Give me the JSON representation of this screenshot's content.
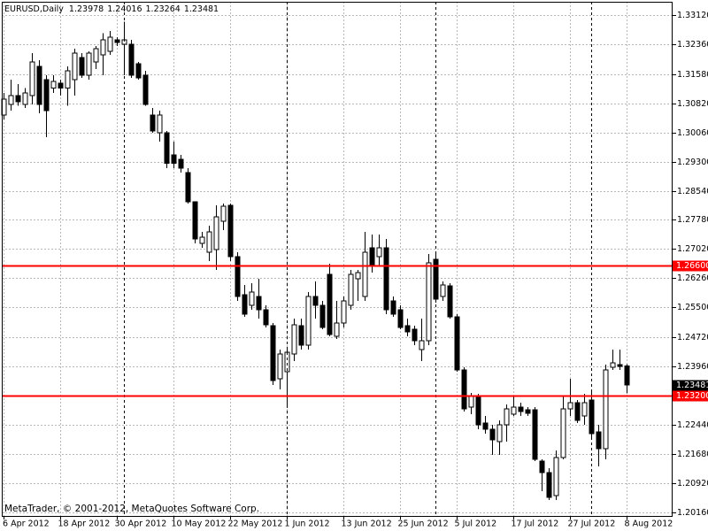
{
  "chart_data": {
    "type": "candlestick",
    "symbol": "EURUSD,Daily",
    "footer": "MetaTrader, © 2001-2012, MetaQuotes Software Corp.",
    "categories": [
      "6 Apr 2012",
      null,
      null,
      null,
      null,
      null,
      null,
      null,
      "18 Apr 2012",
      null,
      null,
      null,
      null,
      null,
      null,
      null,
      "30 Apr 2012",
      null,
      null,
      null,
      null,
      null,
      null,
      null,
      "10 May 2012",
      null,
      null,
      null,
      null,
      null,
      null,
      null,
      "22 May 2012",
      null,
      null,
      null,
      null,
      null,
      null,
      null,
      "1 Jun 2012",
      null,
      null,
      null,
      null,
      null,
      null,
      null,
      "13 Jun 2012",
      null,
      null,
      null,
      null,
      null,
      null,
      null,
      "25 Jun 2012",
      null,
      null,
      null,
      null,
      null,
      null,
      null,
      "5 Jul 2012",
      null,
      null,
      null,
      null,
      null,
      null,
      null,
      "17 Jul 2012",
      null,
      null,
      null,
      null,
      null,
      null,
      null,
      "27 Jul 2012",
      null,
      null,
      null,
      null,
      null,
      null,
      null,
      "8 Aug 2012"
    ],
    "open": [
      1.3051,
      1.3079,
      1.3102,
      1.3079,
      1.3102,
      1.3178,
      1.3144,
      1.3121,
      1.3134,
      1.3121,
      1.3144,
      1.3201,
      1.3155,
      1.319,
      1.3208,
      1.3217,
      1.3247,
      1.3236,
      1.3236,
      1.3185,
      1.3155,
      1.3051,
      1.3005,
      1.3005,
      1.2948,
      1.2936,
      1.2901,
      1.2825,
      1.2717,
      1.2694,
      1.2701,
      1.2775,
      1.2816,
      1.2682,
      1.2583,
      1.2555,
      1.2579,
      1.2544,
      1.2502,
      1.2364,
      1.2383,
      1.2429,
      1.2502,
      1.2452,
      1.2579,
      1.2555,
      1.2636,
      1.2475,
      1.2509,
      1.2555,
      1.2625,
      1.2579,
      1.2705,
      1.2682,
      1.2705,
      1.2567,
      1.2544,
      1.2502,
      1.2493,
      1.244,
      1.2463,
      1.2675,
      1.2579,
      1.2606,
      1.2526,
      1.2387,
      1.229,
      1.2318,
      1.2249,
      1.2233,
      1.22,
      1.2244,
      1.2272,
      1.229,
      1.2283,
      1.2283,
      1.215,
      1.212,
      1.206,
      1.2159,
      1.2286,
      1.2302,
      1.2267,
      1.2309,
      1.2226,
      1.2182,
      1.2394,
      1.2401,
      1.23978
    ],
    "high": [
      1.3109,
      1.3144,
      1.3132,
      1.3121,
      1.3213,
      1.3194,
      1.3155,
      1.3155,
      1.3144,
      1.3178,
      1.3224,
      1.3213,
      1.3217,
      1.3231,
      1.3264,
      1.327,
      1.3254,
      1.3294,
      1.3247,
      1.319,
      1.3167,
      1.307,
      1.3063,
      1.301,
      1.2982,
      1.2948,
      1.2913,
      1.2825,
      1.2747,
      1.2763,
      1.2816,
      1.2821,
      1.2821,
      1.2694,
      1.2609,
      1.2613,
      1.2625,
      1.2555,
      1.2509,
      1.244,
      1.244,
      1.2521,
      1.2521,
      1.259,
      1.2618,
      1.2567,
      1.2664,
      1.2567,
      1.2579,
      1.2648,
      1.2648,
      1.2747,
      1.274,
      1.274,
      1.2728,
      1.2579,
      1.2555,
      1.2521,
      1.2502,
      1.2521,
      1.2689,
      1.2694,
      1.2618,
      1.2613,
      1.2532,
      1.2394,
      1.2327,
      1.2325,
      1.2267,
      1.2244,
      1.2256,
      1.2297,
      1.2318,
      1.2302,
      1.229,
      1.229,
      1.2154,
      1.2131,
      1.2177,
      1.232,
      1.2364,
      1.2309,
      1.2325,
      1.2336,
      1.2244,
      1.2401,
      1.244,
      1.244,
      1.24016
    ],
    "low": [
      1.304,
      1.3063,
      1.3075,
      1.307,
      1.3079,
      1.3056,
      1.2994,
      1.3109,
      1.3102,
      1.3075,
      1.3102,
      1.3148,
      1.3144,
      1.3171,
      1.3155,
      1.3208,
      1.3231,
      1.3155,
      1.3148,
      1.3144,
      1.3075,
      1.3005,
      1.2982,
      1.2913,
      1.2913,
      1.2901,
      1.2821,
      1.2717,
      1.2705,
      1.2671,
      1.2648,
      1.2751,
      1.2671,
      1.2567,
      1.2526,
      1.2544,
      1.2521,
      1.2498,
      1.2348,
      1.2336,
      1.229,
      1.241,
      1.244,
      1.244,
      1.2521,
      1.2493,
      1.2475,
      1.2468,
      1.2498,
      1.2544,
      1.2567,
      1.2567,
      1.2641,
      1.2659,
      1.2532,
      1.2526,
      1.2493,
      1.2475,
      1.2452,
      1.241,
      1.2452,
      1.2562,
      1.2567,
      1.2521,
      1.2383,
      1.2279,
      1.2272,
      1.2233,
      1.2221,
      1.2166,
      1.2166,
      1.22,
      1.2267,
      1.2267,
      1.2267,
      1.215,
      1.2071,
      1.2048,
      1.2048,
      1.2154,
      1.2267,
      1.2249,
      1.2244,
      1.221,
      1.2136,
      1.2154,
      1.2387,
      1.2387,
      1.23264
    ],
    "close": [
      1.3093,
      1.3102,
      1.3086,
      1.3109,
      1.319,
      1.3079,
      1.3063,
      1.3139,
      1.3121,
      1.3167,
      1.3213,
      1.3155,
      1.3213,
      1.3224,
      1.3247,
      1.3254,
      1.324,
      1.3247,
      1.3155,
      1.3148,
      1.3079,
      1.301,
      1.3051,
      1.2925,
      1.2925,
      1.2913,
      1.2825,
      1.2728,
      1.2733,
      1.2747,
      1.2786,
      1.2814,
      1.2682,
      1.2579,
      1.2532,
      1.259,
      1.2544,
      1.2505,
      1.2359,
      1.2429,
      1.2433,
      1.2505,
      1.2452,
      1.2579,
      1.2555,
      1.2498,
      1.2479,
      1.2509,
      1.2567,
      1.2636,
      1.2641,
      1.2694,
      1.2659,
      1.2705,
      1.2544,
      1.2532,
      1.2498,
      1.2486,
      1.2463,
      1.2463,
      1.2666,
      1.2572,
      1.2609,
      1.2526,
      1.2387,
      1.2286,
      1.2318,
      1.2244,
      1.2233,
      1.2205,
      1.2244,
      1.2286,
      1.229,
      1.2279,
      1.2274,
      1.2154,
      1.212,
      1.2055,
      1.2159,
      1.2286,
      1.2302,
      1.2256,
      1.2302,
      1.2221,
      1.2182,
      1.2387,
      1.2406,
      1.2396,
      1.23481
    ],
    "up_color": "#ffffff",
    "down_color": "#000000",
    "ylim": [
      1.20066,
      1.33464
    ],
    "yticks": [
      {
        "value": 1.3312,
        "label": "1.33120"
      },
      {
        "value": 1.3236,
        "label": "1.32360"
      },
      {
        "value": 1.3158,
        "label": "1.31580"
      },
      {
        "value": 1.3082,
        "label": "1.30820"
      },
      {
        "value": 1.3006,
        "label": "1.30060"
      },
      {
        "value": 1.293,
        "label": "1.29300"
      },
      {
        "value": 1.2854,
        "label": "1.28540"
      },
      {
        "value": 1.2778,
        "label": "1.27780"
      },
      {
        "value": 1.2702,
        "label": "1.27020"
      },
      {
        "value": 1.2626,
        "label": "1.26260"
      },
      {
        "value": 1.255,
        "label": "1.25500"
      },
      {
        "value": 1.2472,
        "label": "1.24720"
      },
      {
        "value": 1.2396,
        "label": "1.23960"
      },
      {
        "value": 1.2244,
        "label": "1.22440"
      },
      {
        "value": 1.2168,
        "label": "1.21680"
      },
      {
        "value": 1.2092,
        "label": "1.20920"
      },
      {
        "value": 1.2016,
        "label": "1.20160"
      }
    ],
    "grid": true,
    "hlines": [
      {
        "value": 1.266,
        "label": "1.26600",
        "color": "#ff0000"
      },
      {
        "value": 1.232,
        "label": "1.23200",
        "color": "#ff0000"
      }
    ],
    "price_marker": {
      "value": 1.23481,
      "label": "1.23481"
    }
  }
}
